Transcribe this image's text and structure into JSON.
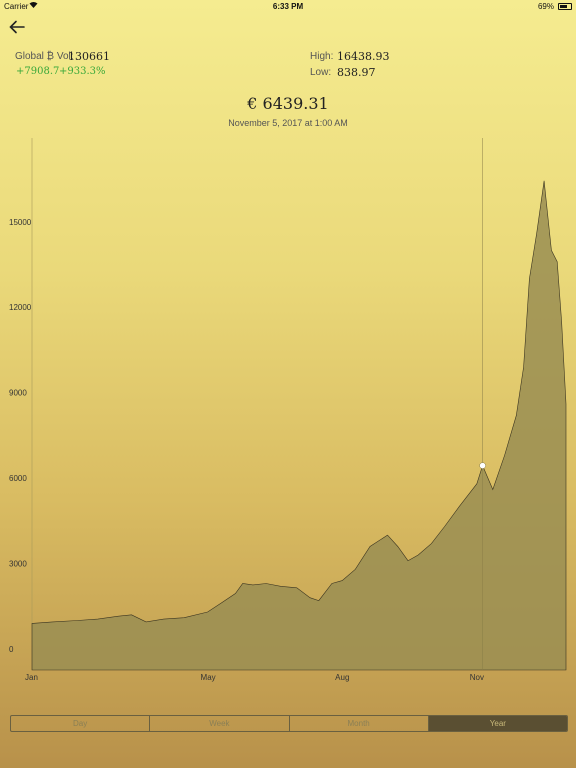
{
  "status_bar": {
    "carrier": "Carrier",
    "time": "6:33 PM",
    "battery": "69%",
    "battery_level": 0.69
  },
  "header": {
    "back_icon": "arrow-left-icon"
  },
  "stats": {
    "vol_label": "Global ₿ Vol:",
    "vol_value": "130661",
    "change_abs": "+7908.7",
    "change_pct": "+933.3%",
    "high_label": "High:",
    "high_value": "16438.93",
    "low_label": "Low:",
    "low_value": "838.97"
  },
  "selection": {
    "price": "€ 6439.31",
    "date": "November 5, 2017 at 1:00 AM"
  },
  "colors": {
    "area_fill": "#9a8e52",
    "area_stroke": "#3a3420",
    "positive": "#3aa83a",
    "segment_active": "#5a4f32"
  },
  "chart_data": {
    "type": "area",
    "y_ticks": [
      "0",
      "3000",
      "6000",
      "9000",
      "12000",
      "15000"
    ],
    "x_ticks": [
      "Jan",
      "May",
      "Aug",
      "Nov"
    ],
    "ylim": [
      0,
      16438.93
    ],
    "selected": {
      "x": "2017-11-05",
      "y": 6439.31
    },
    "x": [
      "2017-01-01",
      "2017-01-15",
      "2017-02-01",
      "2017-02-15",
      "2017-03-01",
      "2017-03-10",
      "2017-03-20",
      "2017-04-01",
      "2017-04-15",
      "2017-05-01",
      "2017-05-10",
      "2017-05-20",
      "2017-05-25",
      "2017-06-01",
      "2017-06-10",
      "2017-06-20",
      "2017-07-01",
      "2017-07-10",
      "2017-07-16",
      "2017-07-25",
      "2017-08-01",
      "2017-08-10",
      "2017-08-20",
      "2017-09-01",
      "2017-09-08",
      "2017-09-15",
      "2017-09-22",
      "2017-10-01",
      "2017-10-10",
      "2017-10-20",
      "2017-11-01",
      "2017-11-05",
      "2017-11-12",
      "2017-11-20",
      "2017-11-28",
      "2017-12-03",
      "2017-12-07",
      "2017-12-12",
      "2017-12-17",
      "2017-12-22",
      "2017-12-26",
      "2017-12-29",
      "2018-01-01"
    ],
    "values": [
      900,
      950,
      1000,
      1050,
      1150,
      1200,
      950,
      1050,
      1100,
      1300,
      1600,
      1950,
      2300,
      2250,
      2300,
      2200,
      2150,
      1800,
      1700,
      2300,
      2400,
      2800,
      3600,
      4000,
      3600,
      3100,
      3300,
      3700,
      4300,
      5000,
      5800,
      6439,
      5600,
      6800,
      8200,
      9900,
      13000,
      14600,
      16439,
      14000,
      13600,
      11500,
      8600
    ]
  },
  "segments": [
    {
      "label": "Day",
      "active": false
    },
    {
      "label": "Week",
      "active": false
    },
    {
      "label": "Month",
      "active": false
    },
    {
      "label": "Year",
      "active": true
    }
  ]
}
